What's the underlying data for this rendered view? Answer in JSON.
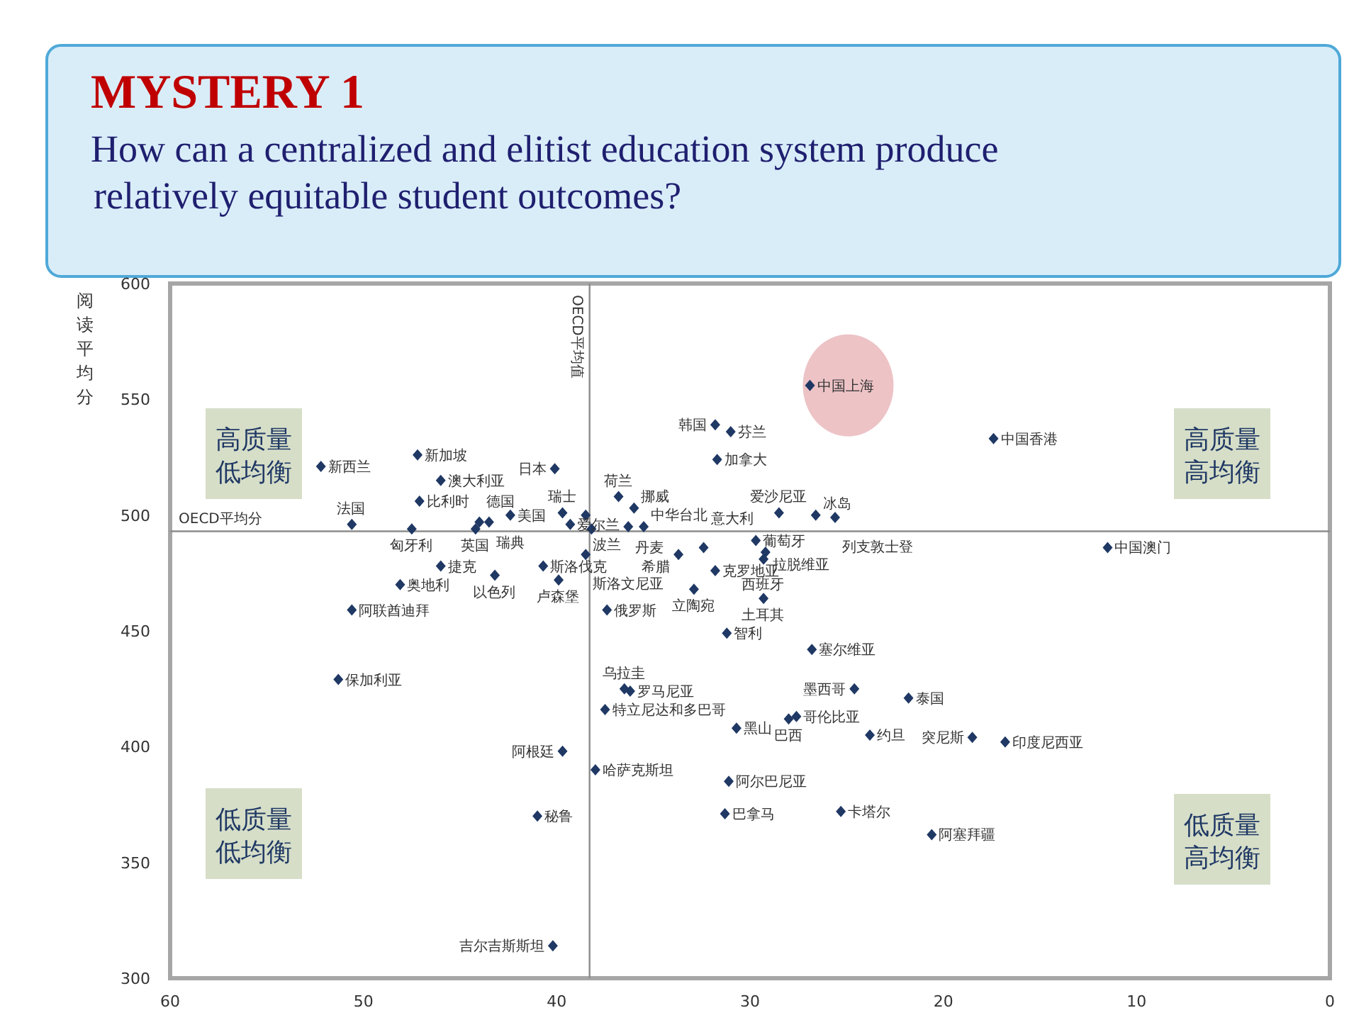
{
  "chart_data": {
    "type": "scatter",
    "title": "MYSTERY 1",
    "subtitle": "How can a centralized and elitist education system produce relatively equitable student outcomes?",
    "ylabel": "阅读平均分",
    "xlim": [
      60,
      0
    ],
    "xticks": [
      60,
      50,
      40,
      30,
      20,
      10,
      0
    ],
    "ylim": [
      300,
      600
    ],
    "yticks": [
      300,
      350,
      400,
      450,
      500,
      550,
      600
    ],
    "grid": false,
    "marker": "diamond",
    "ref_lines": [
      {
        "axis": "y",
        "value": 493,
        "label": "OECD平均分",
        "color": "#8c8c8c"
      },
      {
        "axis": "x",
        "value": 38.3,
        "label": "OECD平均值",
        "color": "#8c8c8c"
      }
    ],
    "series": [
      {
        "color": "#1f3864",
        "x": [
          52.2,
          47.2,
          40.1,
          46,
          47.1,
          44.0,
          44.2,
          43.5,
          42.4,
          50.6,
          47.5,
          46,
          48.1,
          43.2,
          50.6,
          40.7,
          39.9,
          39.7,
          39.3,
          38.5,
          38.2,
          36.3,
          35.5,
          36.8,
          36,
          38.5,
          33.7,
          32.4,
          29.7,
          29.2,
          29.3,
          31.8,
          32.9,
          29.3,
          37.4,
          28.5,
          26.6,
          25.6,
          31.8,
          31,
          31.7,
          26.9,
          17.4,
          11.5,
          31.2,
          26.8,
          36.5,
          36.2,
          37.5,
          30.7,
          27.6,
          28,
          24.6,
          21.8,
          23.8,
          39.7,
          38,
          31.1,
          41,
          31.3,
          25.3,
          20.6,
          40.2,
          18.5,
          16.8,
          51.3
        ],
        "values": [
          521,
          526,
          520,
          515,
          506,
          497,
          494,
          497,
          500,
          496,
          494,
          478,
          470,
          474,
          459,
          478,
          472,
          501,
          496,
          500,
          494,
          495,
          495,
          508,
          503,
          483,
          483,
          486,
          489,
          484,
          481,
          476,
          468,
          464,
          459,
          501,
          500,
          499,
          539,
          536,
          524,
          556,
          533,
          486,
          449,
          442,
          425,
          424,
          416,
          408,
          413,
          412,
          425,
          421,
          405,
          398,
          390,
          385,
          370,
          371,
          372,
          362,
          314,
          404,
          402,
          429
        ]
      }
    ],
    "annotations": [
      "高质量低均衡",
      "高质量高均衡",
      "低质量低均衡",
      "低质量高均衡",
      {
        "text": "新西兰",
        "x": 52.2,
        "y": 521
      },
      {
        "text": "新加坡",
        "x": 47.2,
        "y": 526
      },
      {
        "text": "日本",
        "x": 40.1,
        "y": 520
      },
      {
        "text": "澳大利亚",
        "x": 46,
        "y": 515
      },
      {
        "text": "比利时",
        "x": 47.1,
        "y": 506
      },
      {
        "text": "德国",
        "x": 44.0,
        "y": 497
      },
      {
        "text": "英国",
        "x": 44.2,
        "y": 494
      },
      {
        "text": "瑞典",
        "x": 43.5,
        "y": 497
      },
      {
        "text": "美国",
        "x": 42.4,
        "y": 500
      },
      {
        "text": "法国",
        "x": 50.6,
        "y": 496
      },
      {
        "text": "匈牙利",
        "x": 47.5,
        "y": 494
      },
      {
        "text": "捷克",
        "x": 46,
        "y": 478
      },
      {
        "text": "奥地利",
        "x": 48.1,
        "y": 470
      },
      {
        "text": "以色列",
        "x": 43.2,
        "y": 474
      },
      {
        "text": "阿联酋迪拜",
        "x": 50.6,
        "y": 459
      },
      {
        "text": "斯洛伐克",
        "x": 40.7,
        "y": 478
      },
      {
        "text": "卢森堡",
        "x": 39.9,
        "y": 472
      },
      {
        "text": "瑞士",
        "x": 39.7,
        "y": 501
      },
      {
        "text": "爱尔兰",
        "x": 39.3,
        "y": 496
      },
      {
        "text": "波兰",
        "x": 38.5,
        "y": 500
      },
      {
        "text": "丹麦",
        "x": 36.3,
        "y": 495
      },
      {
        "text": "中华台北",
        "x": 35.5,
        "y": 495
      },
      {
        "text": "荷兰",
        "x": 36.8,
        "y": 508
      },
      {
        "text": "挪威",
        "x": 36,
        "y": 503
      },
      {
        "text": "斯洛文尼亚",
        "x": 38.5,
        "y": 483
      },
      {
        "text": "希腊",
        "x": 33.7,
        "y": 483
      },
      {
        "text": "意大利",
        "x": 32.4,
        "y": 486
      },
      {
        "text": "葡萄牙",
        "x": 29.7,
        "y": 489
      },
      {
        "text": "拉脱维亚",
        "x": 29.2,
        "y": 484
      },
      {
        "text": "西班牙",
        "x": 29.3,
        "y": 481
      },
      {
        "text": "克罗地亚",
        "x": 31.8,
        "y": 476
      },
      {
        "text": "立陶宛",
        "x": 32.9,
        "y": 468
      },
      {
        "text": "土耳其",
        "x": 29.3,
        "y": 464
      },
      {
        "text": "俄罗斯",
        "x": 37.4,
        "y": 459
      },
      {
        "text": "爱沙尼亚",
        "x": 28.5,
        "y": 501
      },
      {
        "text": "冰岛",
        "x": 26.6,
        "y": 500
      },
      {
        "text": "列支敦士登",
        "x": 25.6,
        "y": 499
      },
      {
        "text": "韩国",
        "x": 31.8,
        "y": 539
      },
      {
        "text": "芬兰",
        "x": 31,
        "y": 536
      },
      {
        "text": "加拿大",
        "x": 31.7,
        "y": 524
      },
      {
        "text": "中国上海",
        "x": 26.9,
        "y": 556
      },
      {
        "text": "中国香港",
        "x": 17.4,
        "y": 533
      },
      {
        "text": "中国澳门",
        "x": 11.5,
        "y": 486
      },
      {
        "text": "智利",
        "x": 31.2,
        "y": 449
      },
      {
        "text": "塞尔维亚",
        "x": 26.8,
        "y": 442
      },
      {
        "text": "乌拉圭",
        "x": 36.5,
        "y": 425
      },
      {
        "text": "罗马尼亚",
        "x": 36.2,
        "y": 424
      },
      {
        "text": "特立尼达和多巴哥",
        "x": 37.5,
        "y": 416
      },
      {
        "text": "黑山",
        "x": 30.7,
        "y": 408
      },
      {
        "text": "哥伦比亚",
        "x": 27.6,
        "y": 413
      },
      {
        "text": "巴西",
        "x": 28,
        "y": 412
      },
      {
        "text": "墨西哥",
        "x": 24.6,
        "y": 425
      },
      {
        "text": "泰国",
        "x": 21.8,
        "y": 421
      },
      {
        "text": "约旦",
        "x": 23.8,
        "y": 405
      },
      {
        "text": "阿根廷",
        "x": 39.7,
        "y": 398
      },
      {
        "text": "哈萨克斯坦",
        "x": 38,
        "y": 390
      },
      {
        "text": "阿尔巴尼亚",
        "x": 31.1,
        "y": 385
      },
      {
        "text": "秘鲁",
        "x": 41,
        "y": 370
      },
      {
        "text": "巴拿马",
        "x": 31.3,
        "y": 371
      },
      {
        "text": "卡塔尔",
        "x": 25.3,
        "y": 372
      },
      {
        "text": "阿塞拜疆",
        "x": 20.6,
        "y": 362
      },
      {
        "text": "吉尔吉斯斯坦",
        "x": 40.2,
        "y": 314
      },
      {
        "text": "突尼斯",
        "x": 18.5,
        "y": 404
      },
      {
        "text": "印度尼西亚",
        "x": 16.8,
        "y": 402
      },
      {
        "text": "保加利亚",
        "x": 51.3,
        "y": 429
      }
    ]
  }
}
